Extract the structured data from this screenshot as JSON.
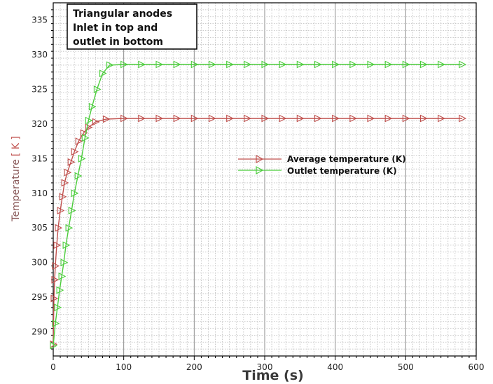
{
  "chart_data": {
    "type": "line",
    "title": "",
    "annotation": [
      "Triangular anodes",
      "Inlet in top and",
      "outlet in bottom"
    ],
    "xlabel": "Time (s)",
    "ylabel": "Temperature",
    "ylabel_unit": "[ K ]",
    "xlim": [
      0,
      600
    ],
    "ylim": [
      286.5,
      337.5
    ],
    "xticks": [
      0,
      100,
      200,
      300,
      400,
      500,
      600
    ],
    "yticks": [
      290,
      295,
      300,
      305,
      310,
      315,
      320,
      325,
      330,
      335
    ],
    "grid": true,
    "legend_position": "center-right",
    "series": [
      {
        "name": "Average temperature (K)",
        "color": "#c0504d",
        "marker": "right-triangle",
        "x": [
          0,
          1,
          2,
          3,
          5,
          7,
          10,
          13,
          16,
          20,
          25,
          30,
          36,
          43,
          50,
          60,
          75,
          100,
          125,
          150,
          175,
          200,
          225,
          250,
          275,
          300,
          325,
          350,
          375,
          400,
          425,
          450,
          475,
          500,
          525,
          550,
          580
        ],
        "y": [
          288.2,
          294.8,
          297.5,
          299.5,
          302.5,
          305.0,
          307.5,
          309.5,
          311.5,
          313.0,
          314.5,
          316.0,
          317.5,
          318.7,
          319.5,
          320.3,
          320.7,
          320.8,
          320.8,
          320.8,
          320.8,
          320.8,
          320.8,
          320.8,
          320.8,
          320.8,
          320.8,
          320.8,
          320.8,
          320.8,
          320.8,
          320.8,
          320.8,
          320.8,
          320.8,
          320.8,
          320.8
        ]
      },
      {
        "name": "Outlet temperature (K)",
        "color": "#4ccd3c",
        "marker": "right-triangle",
        "x": [
          0,
          3,
          6,
          9,
          12,
          15,
          18,
          22,
          26,
          30,
          35,
          40,
          45,
          50,
          55,
          62,
          70,
          80,
          100,
          125,
          150,
          175,
          200,
          225,
          250,
          275,
          300,
          325,
          350,
          375,
          400,
          425,
          450,
          475,
          500,
          525,
          550,
          580
        ],
        "y": [
          288.0,
          291.2,
          293.5,
          296.0,
          298.0,
          300.0,
          302.5,
          305.0,
          307.5,
          310.0,
          312.5,
          315.0,
          318.0,
          320.5,
          322.5,
          325.0,
          327.3,
          328.5,
          328.6,
          328.6,
          328.6,
          328.6,
          328.6,
          328.6,
          328.6,
          328.6,
          328.6,
          328.6,
          328.6,
          328.6,
          328.6,
          328.6,
          328.6,
          328.6,
          328.6,
          328.6,
          328.6,
          328.6
        ]
      }
    ]
  }
}
